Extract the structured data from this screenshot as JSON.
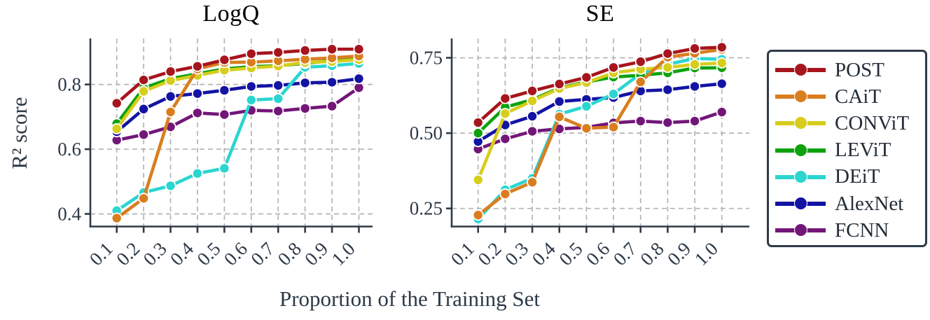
{
  "figure": {
    "ylabel": "R² score",
    "xlabel": "Proportion of the Training Set"
  },
  "colors": {
    "background": "#ffffff",
    "axis": "#2e3a47",
    "grid": "#b4b4b4",
    "tick_text": "#2c3947",
    "title_text": "#000000"
  },
  "legend": {
    "entries": [
      "POST",
      "CAiT",
      "CONViT",
      "LEViT",
      "DEiT",
      "AlexNet",
      "FCNN"
    ]
  },
  "chart_data": [
    {
      "type": "line",
      "title": "LogQ",
      "xlabel": "Proportion of the Training Set",
      "ylabel": "R² score",
      "x": [
        0.1,
        0.2,
        0.3,
        0.4,
        0.5,
        0.6,
        0.7,
        0.8,
        0.9,
        1.0
      ],
      "x_ticklabels": [
        "0.1",
        "0.2",
        "0.3",
        "0.4",
        "0.5",
        "0.6",
        "0.7",
        "0.8",
        "0.9",
        "1.0"
      ],
      "yticks": [
        0.4,
        0.6,
        0.8
      ],
      "ytick_labels": [
        "0.4",
        "0.6",
        "0.8"
      ],
      "ylim": [
        0.361,
        0.942
      ],
      "grid": true,
      "legend_position": "outside-right",
      "series": [
        {
          "name": "POST",
          "color": "#a6151d",
          "values": [
            0.742,
            0.814,
            0.84,
            0.856,
            0.876,
            0.895,
            0.899,
            0.905,
            0.909,
            0.909
          ]
        },
        {
          "name": "CAiT",
          "color": "#d97e1f",
          "values": [
            0.387,
            0.448,
            0.715,
            0.848,
            0.868,
            0.869,
            0.873,
            0.878,
            0.882,
            0.888
          ]
        },
        {
          "name": "CONViT",
          "color": "#d7cd1c",
          "values": [
            0.663,
            0.779,
            0.812,
            0.828,
            0.844,
            0.851,
            0.857,
            0.868,
            0.871,
            0.877
          ]
        },
        {
          "name": "LEViT",
          "color": "#0da20d",
          "values": [
            0.679,
            0.789,
            0.818,
            0.833,
            0.848,
            0.855,
            0.858,
            0.865,
            0.874,
            0.881
          ]
        },
        {
          "name": "DEiT",
          "color": "#2bd5d0",
          "values": [
            0.41,
            0.466,
            0.487,
            0.525,
            0.541,
            0.752,
            0.756,
            0.853,
            0.858,
            0.865
          ]
        },
        {
          "name": "AlexNet",
          "color": "#1313a4",
          "values": [
            0.654,
            0.724,
            0.763,
            0.772,
            0.782,
            0.794,
            0.797,
            0.805,
            0.807,
            0.818
          ]
        },
        {
          "name": "FCNN",
          "color": "#731679",
          "values": [
            0.628,
            0.645,
            0.669,
            0.712,
            0.707,
            0.72,
            0.718,
            0.726,
            0.733,
            0.79
          ]
        }
      ]
    },
    {
      "type": "line",
      "title": "SE",
      "xlabel": "Proportion of the Training Set",
      "ylabel": "R² score",
      "x": [
        0.1,
        0.2,
        0.3,
        0.4,
        0.5,
        0.6,
        0.7,
        0.8,
        0.9,
        1.0
      ],
      "x_ticklabels": [
        "0.1",
        "0.2",
        "0.3",
        "0.4",
        "0.5",
        "0.6",
        "0.7",
        "0.8",
        "0.9",
        "1.0"
      ],
      "yticks": [
        0.25,
        0.5,
        0.75
      ],
      "ytick_labels": [
        "0.25",
        "0.50",
        "0.75"
      ],
      "ylim": [
        0.19,
        0.814
      ],
      "grid": true,
      "legend_position": "outside-right",
      "series": [
        {
          "name": "POST",
          "color": "#a6151d",
          "values": [
            0.535,
            0.615,
            0.64,
            0.663,
            0.685,
            0.718,
            0.737,
            0.764,
            0.781,
            0.785
          ]
        },
        {
          "name": "CAiT",
          "color": "#d97e1f",
          "values": [
            0.228,
            0.298,
            0.337,
            0.554,
            0.516,
            0.52,
            0.67,
            0.752,
            0.765,
            0.778
          ]
        },
        {
          "name": "CONViT",
          "color": "#d7cd1c",
          "values": [
            0.345,
            0.565,
            0.607,
            0.648,
            0.668,
            0.7,
            0.712,
            0.718,
            0.728,
            0.733
          ]
        },
        {
          "name": "LEViT",
          "color": "#0da20d",
          "values": [
            0.5,
            0.586,
            0.611,
            0.65,
            0.67,
            0.686,
            0.692,
            0.7,
            0.716,
            0.717
          ]
        },
        {
          "name": "DEiT",
          "color": "#2bd5d0",
          "values": [
            0.215,
            0.312,
            0.35,
            0.563,
            0.589,
            0.63,
            0.698,
            0.728,
            0.748,
            0.745
          ]
        },
        {
          "name": "AlexNet",
          "color": "#1313a4",
          "values": [
            0.472,
            0.527,
            0.556,
            0.605,
            0.612,
            0.618,
            0.64,
            0.644,
            0.655,
            0.664
          ]
        },
        {
          "name": "FCNN",
          "color": "#731679",
          "values": [
            0.447,
            0.481,
            0.506,
            0.514,
            0.519,
            0.534,
            0.54,
            0.535,
            0.54,
            0.57
          ]
        }
      ]
    }
  ]
}
